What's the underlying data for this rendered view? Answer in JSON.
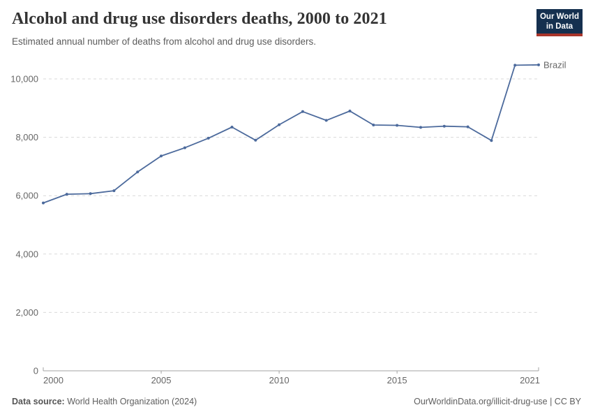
{
  "header": {
    "title": "Alcohol and drug use disorders deaths, 2000 to 2021",
    "subtitle": "Estimated annual number of deaths from alcohol and drug use disorders.",
    "logo": {
      "line1": "Our World",
      "line2": "in Data",
      "bg_color": "#15304f",
      "accent_color": "#a9352b"
    }
  },
  "chart_data": {
    "type": "line",
    "title": "Alcohol and drug use disorders deaths, 2000 to 2021",
    "xlabel": "",
    "ylabel": "",
    "x": [
      2000,
      2001,
      2002,
      2003,
      2004,
      2005,
      2006,
      2007,
      2008,
      2009,
      2010,
      2011,
      2012,
      2013,
      2014,
      2015,
      2016,
      2017,
      2018,
      2019,
      2020,
      2021
    ],
    "series": [
      {
        "name": "Brazil",
        "color": "#4c6a9c",
        "values": [
          5750,
          6050,
          6070,
          6170,
          6810,
          7360,
          7640,
          7970,
          8350,
          7900,
          8430,
          8880,
          8580,
          8900,
          8420,
          8410,
          8340,
          8380,
          8360,
          7890,
          10470,
          10480
        ]
      }
    ],
    "x_ticks": [
      2000,
      2005,
      2010,
      2015,
      2021
    ],
    "y_ticks": [
      0,
      2000,
      4000,
      6000,
      8000,
      10000
    ],
    "y_tick_labels": [
      "0",
      "2,000",
      "4,000",
      "6,000",
      "8,000",
      "10,000"
    ],
    "ylim": [
      0,
      10700
    ],
    "xlim": [
      2000,
      2021
    ],
    "grid": "dashed horizontal",
    "legend_position": "end-of-line label",
    "colors": {
      "grid": "#d9d9d9",
      "axis": "#a3a3a3",
      "tick_text": "#666666"
    }
  },
  "footer": {
    "source_label": "Data source:",
    "source_text": " World Health Organization (2024)",
    "link_text": "OurWorldinData.org/illicit-drug-use | CC BY"
  }
}
